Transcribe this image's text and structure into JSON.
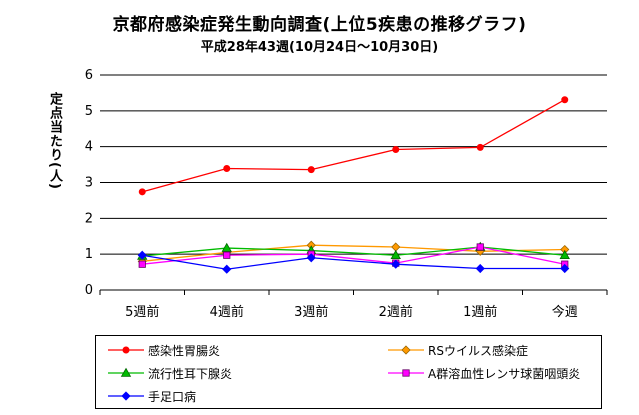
{
  "chart_data": {
    "type": "line",
    "title": "京都府感染症発生動向調査(上位5疾患の推移グラフ)",
    "subtitle": "平成28年43週(10月24日〜10月30日)",
    "ylabel": "定点当たり(人)",
    "xlabel": "",
    "categories": [
      "5週前",
      "4週前",
      "3週前",
      "2週前",
      "1週前",
      "今週"
    ],
    "ylim": [
      0,
      6
    ],
    "yticks": [
      "0",
      "1",
      "2",
      "3",
      "4",
      "5",
      "6"
    ],
    "grid": true,
    "legend_position": "bottom",
    "series": [
      {
        "name": "感染性胃腸炎",
        "color": "#ff0000",
        "marker": "circle",
        "values": [
          2.74,
          3.39,
          3.36,
          3.92,
          3.98,
          5.31
        ]
      },
      {
        "name": "RSウイルス感染症",
        "color": "#ff9900",
        "marker": "diamond",
        "values": [
          0.8,
          1.05,
          1.25,
          1.2,
          1.08,
          1.13
        ]
      },
      {
        "name": "流行性耳下腺炎",
        "color": "#00bb00",
        "marker": "triangle",
        "values": [
          0.95,
          1.17,
          1.1,
          0.97,
          1.2,
          0.97
        ]
      },
      {
        "name": "A群溶血性レンサ球菌咽頭炎",
        "color": "#ff00ff",
        "marker": "square",
        "values": [
          0.72,
          0.97,
          1.0,
          0.75,
          1.2,
          0.72
        ]
      },
      {
        "name": "手足口病",
        "color": "#0000ff",
        "marker": "diamond",
        "values": [
          0.97,
          0.58,
          0.9,
          0.72,
          0.6,
          0.6
        ]
      }
    ]
  }
}
